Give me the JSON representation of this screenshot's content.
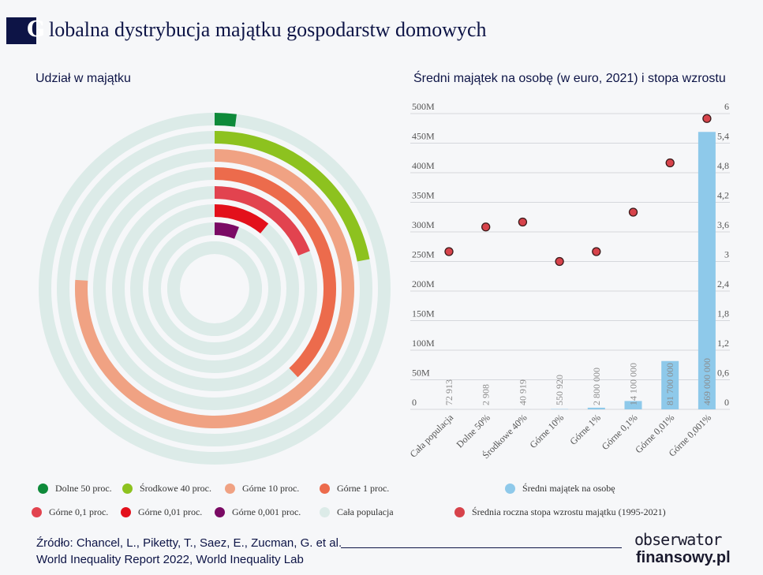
{
  "title_initial": "G",
  "title_rest": "lobalna dystrybucja majątku gospodarstw domowych",
  "chart_data": [
    {
      "type": "radial-bar",
      "title": "Udział w majątku",
      "unit": "%",
      "track_color": "#dcebe8",
      "series": [
        {
          "name": "Dolne 50 proc.",
          "value": 2,
          "color": "#0e8a3a"
        },
        {
          "name": "Środkowe 40 proc.",
          "value": 22,
          "color": "#8dc21f"
        },
        {
          "name": "Górne 10 proc.",
          "value": 76,
          "color": "#f0a283"
        },
        {
          "name": "Górne 1 proc.",
          "value": 38,
          "color": "#ec6b4c"
        },
        {
          "name": "Górne 0,1 proc.",
          "value": 19,
          "color": "#e2434f"
        },
        {
          "name": "Górne 0,01 proc.",
          "value": 11,
          "color": "#e3101b"
        },
        {
          "name": "Górne 0,001 proc.",
          "value": 6,
          "color": "#7a0a64"
        },
        {
          "name": "Cała populacja",
          "value": 100,
          "color": "#dcebe8"
        }
      ]
    },
    {
      "type": "bar+scatter",
      "title": "Średni majątek na osobę (w euro, 2021) i stopa wzrostu",
      "categories": [
        "Cała populacja",
        "Dolne 50%",
        "Środkowe 40%",
        "Górne 10%",
        "Górne 1%",
        "Górne 0,1%",
        "Górne 0,01%",
        "Górne 0,001%"
      ],
      "bar_series": {
        "name": "Średni majątek na osobę",
        "color": "#8ec9ea",
        "values": [
          72913,
          2908,
          40919,
          550920,
          2800000,
          14100000,
          81700000,
          469000000
        ],
        "labels": [
          "72 913",
          "2 908",
          "40 919",
          "550 920",
          "2 800 000",
          "14 100 000",
          "81 700 000",
          "469 000 000"
        ]
      },
      "scatter_series": {
        "name": "Średnia roczna stopa wzrostu majątku (1995-2021)",
        "color": "#d7434b",
        "values": [
          3.2,
          3.7,
          3.8,
          3.0,
          3.2,
          4.0,
          5.0,
          5.9
        ]
      },
      "y_left": {
        "min": 0,
        "max": 500000000,
        "ticks": [
          "0",
          "50M",
          "100M",
          "150M",
          "200M",
          "250M",
          "300M",
          "350M",
          "400M",
          "450M",
          "500M"
        ]
      },
      "y_right": {
        "min": 0,
        "max": 6,
        "ticks": [
          "0",
          "0,6",
          "1,2",
          "1,8",
          "2,4",
          "3",
          "3,6",
          "4,2",
          "4,8",
          "5,4",
          "6"
        ]
      },
      "grid": true
    }
  ],
  "source_line1": "Źródło: Chancel, L., Piketty, T., Saez, E., Zucman, G. et al.",
  "source_line2": "World Inequality Report 2022, World Inequality Lab",
  "logo_line1": "obserwator",
  "logo_line2": "finansowy.pl"
}
